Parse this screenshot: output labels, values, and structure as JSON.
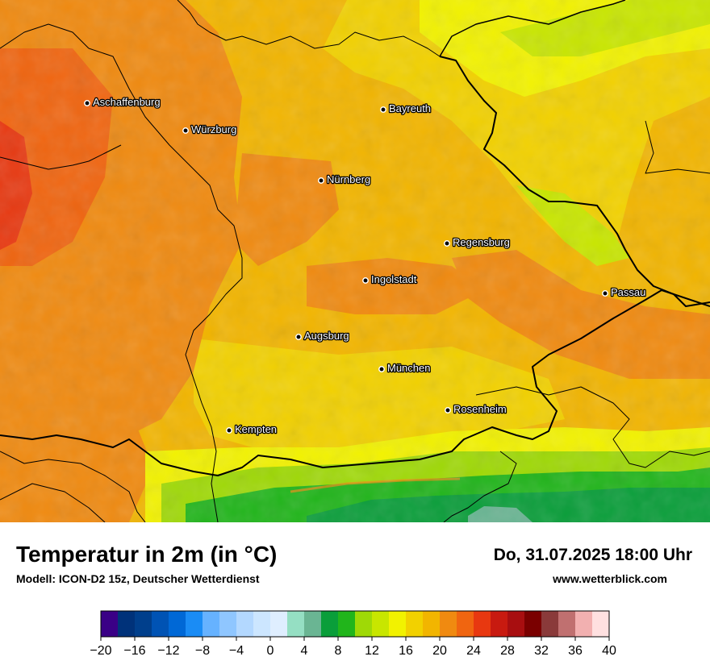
{
  "title": "Temperatur in 2m (in °C)",
  "model": "Modell: ICON-D2 15z, Deutscher Wetterdienst",
  "datetime": "Do, 31.07.2025 18:00 Uhr",
  "website": "www.wetterblick.com",
  "cities": [
    {
      "name": "Aschaffenburg"
    },
    {
      "name": "Würzburg"
    },
    {
      "name": "Bayreuth"
    },
    {
      "name": "Nürnberg"
    },
    {
      "name": "Regensburg"
    },
    {
      "name": "Ingolstadt"
    },
    {
      "name": "Passau"
    },
    {
      "name": "Augsburg"
    },
    {
      "name": "München"
    },
    {
      "name": "Rosenheim"
    },
    {
      "name": "Kempten"
    }
  ],
  "legend": {
    "unit": "°C",
    "tick_labels": [
      "−20",
      "−16",
      "−12",
      "−8",
      "−4",
      "0",
      "4",
      "8",
      "12",
      "16",
      "20",
      "24",
      "28",
      "32",
      "36",
      "40"
    ],
    "colors": [
      "#3a0086",
      "#00327a",
      "#003f8c",
      "#0053b4",
      "#0068d6",
      "#1a8cf5",
      "#66b2ff",
      "#8fc6ff",
      "#b3d8ff",
      "#cce6ff",
      "#dfeeff",
      "#95dfc3",
      "#6ab593",
      "#0a9e3a",
      "#21b51b",
      "#9fd906",
      "#c8e600",
      "#f2f200",
      "#f2d100",
      "#f2b500",
      "#f08a10",
      "#f06510",
      "#e83810",
      "#c81a10",
      "#a80e10",
      "#7a0000",
      "#8a3a3a",
      "#c07070",
      "#f2b0b0",
      "#ffe0e0"
    ]
  }
}
